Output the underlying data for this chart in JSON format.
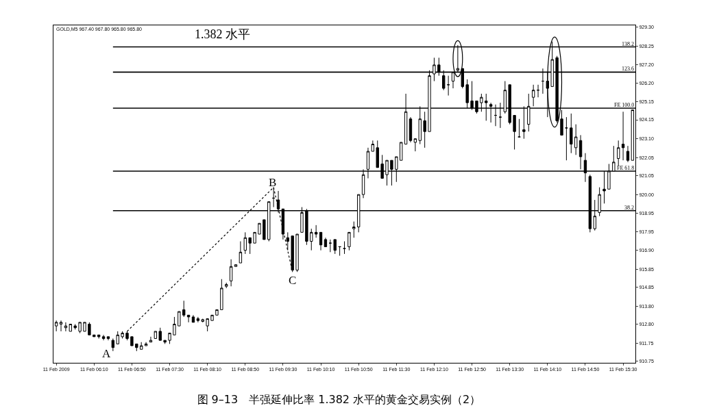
{
  "chart_data": {
    "type": "candlestick",
    "title": "图 9–13　半强延伸比率 1.382 水平的黄金交易实例（2）",
    "annotations": [
      "GOLD,M5 967.40 967.80 965.80 965.80",
      "1.382 水平",
      "A",
      "B",
      "C",
      "138.2",
      "123.6",
      "FE 100.0",
      "FE 61.8",
      "38.2"
    ],
    "x": [
      "2009-02-11T05:30",
      "2009-02-11T05:35",
      "2009-02-11T05:40",
      "2009-02-11T05:45",
      "2009-02-11T05:50",
      "2009-02-11T05:55",
      "2009-02-11T06:00",
      "2009-02-11T06:05",
      "2009-02-11T06:10",
      "2009-02-11T06:15",
      "2009-02-11T06:20",
      "2009-02-11T06:25",
      "2009-02-11T06:30",
      "2009-02-11T06:35",
      "2009-02-11T06:40",
      "2009-02-11T06:45",
      "2009-02-11T06:50",
      "2009-02-11T06:55",
      "2009-02-11T07:00",
      "2009-02-11T07:05",
      "2009-02-11T07:10",
      "2009-02-11T07:15",
      "2009-02-11T07:20",
      "2009-02-11T07:25",
      "2009-02-11T07:30",
      "2009-02-11T07:35",
      "2009-02-11T07:40",
      "2009-02-11T07:45",
      "2009-02-11T07:50",
      "2009-02-11T07:55",
      "2009-02-11T08:00",
      "2009-02-11T08:05",
      "2009-02-11T08:10",
      "2009-02-11T08:15",
      "2009-02-11T08:20",
      "2009-02-11T08:25",
      "2009-02-11T08:30",
      "2009-02-11T08:35",
      "2009-02-11T08:40",
      "2009-02-11T08:45",
      "2009-02-11T08:50",
      "2009-02-11T08:55",
      "2009-02-11T09:00",
      "2009-02-11T09:05",
      "2009-02-11T09:10",
      "2009-02-11T09:15",
      "2009-02-11T09:20",
      "2009-02-11T09:25",
      "2009-02-11T09:30",
      "2009-02-11T09:35",
      "2009-02-11T09:40",
      "2009-02-11T09:45",
      "2009-02-11T09:50",
      "2009-02-11T09:55",
      "2009-02-11T10:00",
      "2009-02-11T10:05",
      "2009-02-11T10:10",
      "2009-02-11T10:15",
      "2009-02-11T10:20",
      "2009-02-11T10:25",
      "2009-02-11T10:30",
      "2009-02-11T10:35",
      "2009-02-11T10:40",
      "2009-02-11T10:45",
      "2009-02-11T10:50",
      "2009-02-11T10:55",
      "2009-02-11T11:00",
      "2009-02-11T11:05",
      "2009-02-11T11:10",
      "2009-02-11T11:15",
      "2009-02-11T11:20",
      "2009-02-11T11:25",
      "2009-02-11T11:30",
      "2009-02-11T11:35",
      "2009-02-11T11:40",
      "2009-02-11T11:45",
      "2009-02-11T11:50",
      "2009-02-11T11:55",
      "2009-02-11T12:00",
      "2009-02-11T12:05",
      "2009-02-11T12:10",
      "2009-02-11T12:15",
      "2009-02-11T12:20",
      "2009-02-11T12:25",
      "2009-02-11T12:30",
      "2009-02-11T12:35",
      "2009-02-11T12:40",
      "2009-02-11T12:45",
      "2009-02-11T12:50",
      "2009-02-11T12:55",
      "2009-02-11T13:00",
      "2009-02-11T13:05",
      "2009-02-11T13:10",
      "2009-02-11T13:15",
      "2009-02-11T13:20",
      "2009-02-11T13:25",
      "2009-02-11T13:30",
      "2009-02-11T13:35",
      "2009-02-11T13:40",
      "2009-02-11T13:45",
      "2009-02-11T13:50",
      "2009-02-11T13:55",
      "2009-02-11T14:00",
      "2009-02-11T14:05",
      "2009-02-11T14:10",
      "2009-02-11T14:15",
      "2009-02-11T14:20",
      "2009-02-11T14:25",
      "2009-02-11T14:30",
      "2009-02-11T14:35",
      "2009-02-11T14:40",
      "2009-02-11T14:45",
      "2009-02-11T14:50",
      "2009-02-11T14:55",
      "2009-02-11T15:00",
      "2009-02-11T15:05",
      "2009-02-11T15:10",
      "2009-02-11T15:15",
      "2009-02-11T15:20",
      "2009-02-11T15:25",
      "2009-02-11T15:30",
      "2009-02-11T15:35",
      "2009-02-11T15:40"
    ],
    "ohlc": [
      [
        912.7,
        913.0,
        912.4,
        912.9
      ],
      [
        912.8,
        913.0,
        912.4,
        912.9
      ],
      [
        912.6,
        912.9,
        912.4,
        912.7
      ],
      [
        912.4,
        912.8,
        912.4,
        912.8
      ],
      [
        912.7,
        912.8,
        912.5,
        912.6
      ],
      [
        912.4,
        912.9,
        912.3,
        912.9
      ],
      [
        912.4,
        912.9,
        912.4,
        912.9
      ],
      [
        912.8,
        912.9,
        912.2,
        912.2
      ],
      [
        912.2,
        912.2,
        912.1,
        912.1
      ],
      [
        912.2,
        912.2,
        912.0,
        912.1
      ],
      [
        912.1,
        912.2,
        911.9,
        912.0
      ],
      [
        912.1,
        912.1,
        911.9,
        912.0
      ],
      [
        911.9,
        912.0,
        911.3,
        911.5
      ],
      [
        911.7,
        912.4,
        911.7,
        912.2
      ],
      [
        912.1,
        912.4,
        912.0,
        912.3
      ],
      [
        912.3,
        912.4,
        911.9,
        912.0
      ],
      [
        912.1,
        912.1,
        911.6,
        911.6
      ],
      [
        911.7,
        911.7,
        911.3,
        911.5
      ],
      [
        911.4,
        911.8,
        911.4,
        911.6
      ],
      [
        911.6,
        911.8,
        911.6,
        911.7
      ],
      [
        911.8,
        912.1,
        911.8,
        911.9
      ],
      [
        912.0,
        912.4,
        912.0,
        912.4
      ],
      [
        912.4,
        912.6,
        911.9,
        911.9
      ],
      [
        911.9,
        911.9,
        911.7,
        911.8
      ],
      [
        911.9,
        912.3,
        911.7,
        912.3
      ],
      [
        912.2,
        913.2,
        912.2,
        912.8
      ],
      [
        912.7,
        913.5,
        912.7,
        913.5
      ],
      [
        913.6,
        914.1,
        913.2,
        913.3
      ],
      [
        913.3,
        913.3,
        912.9,
        913.2
      ],
      [
        913.2,
        913.3,
        912.9,
        912.9
      ],
      [
        913.1,
        913.2,
        912.9,
        913.0
      ],
      [
        912.95,
        913.1,
        912.9,
        913.05
      ],
      [
        912.7,
        913.1,
        912.4,
        913.1
      ],
      [
        913.0,
        913.3,
        913.0,
        913.3
      ],
      [
        913.3,
        913.6,
        913.3,
        913.6
      ],
      [
        913.6,
        915.3,
        913.6,
        914.8
      ],
      [
        914.9,
        915.1,
        914.8,
        915.0
      ],
      [
        915.2,
        916.4,
        914.9,
        916.0
      ],
      [
        916.0,
        916.1,
        916.0,
        916.1
      ],
      [
        916.2,
        917.4,
        916.2,
        916.8
      ],
      [
        916.9,
        917.9,
        916.7,
        917.6
      ],
      [
        917.6,
        917.6,
        916.7,
        917.3
      ],
      [
        917.3,
        917.9,
        917.3,
        917.9
      ],
      [
        917.8,
        918.4,
        917.8,
        918.4
      ],
      [
        918.6,
        918.6,
        917.5,
        917.5
      ],
      [
        917.5,
        919.6,
        917.4,
        919.6
      ],
      [
        919.8,
        920.4,
        919.3,
        919.8
      ],
      [
        919.7,
        920.2,
        919.0,
        919.2
      ],
      [
        919.2,
        919.2,
        917.5,
        917.8
      ],
      [
        917.6,
        917.9,
        916.9,
        917.4
      ],
      [
        917.7,
        917.7,
        915.7,
        915.8
      ],
      [
        915.8,
        917.8,
        915.7,
        917.8
      ],
      [
        917.9,
        919.3,
        917.9,
        919.0
      ],
      [
        919.1,
        919.2,
        917.2,
        917.4
      ],
      [
        917.4,
        918.1,
        916.9,
        917.9
      ],
      [
        917.9,
        918.3,
        917.6,
        917.8
      ],
      [
        917.9,
        917.9,
        916.9,
        917.2
      ],
      [
        917.5,
        917.6,
        917.1,
        917.1
      ],
      [
        917.3,
        917.5,
        916.8,
        917.3
      ],
      [
        917.5,
        917.5,
        916.7,
        916.9
      ],
      [
        917.1,
        917.1,
        916.6,
        917.1
      ],
      [
        917.0,
        917.4,
        916.7,
        917.0
      ],
      [
        917.1,
        917.9,
        916.9,
        917.9
      ],
      [
        918.1,
        918.5,
        917.6,
        918.2
      ],
      [
        918.2,
        920.0,
        917.9,
        920.0
      ],
      [
        920.0,
        921.4,
        919.8,
        921.1
      ],
      [
        921.4,
        922.6,
        920.9,
        922.4
      ],
      [
        922.4,
        923.0,
        922.4,
        922.8
      ],
      [
        922.6,
        923.0,
        921.5,
        921.5
      ],
      [
        921.7,
        922.2,
        920.9,
        920.9
      ],
      [
        921.1,
        921.9,
        920.5,
        921.9
      ],
      [
        921.9,
        921.9,
        920.5,
        921.4
      ],
      [
        921.4,
        922.1,
        920.7,
        922.1
      ],
      [
        921.9,
        922.9,
        921.9,
        922.9
      ],
      [
        922.8,
        925.6,
        922.8,
        924.6
      ],
      [
        924.2,
        924.3,
        922.9,
        923.0
      ],
      [
        922.9,
        923.1,
        922.4,
        923.1
      ],
      [
        923.0,
        924.9,
        922.8,
        924.2
      ],
      [
        924.1,
        924.6,
        922.6,
        923.5
      ],
      [
        923.5,
        926.9,
        923.5,
        926.6
      ],
      [
        926.7,
        927.6,
        926.3,
        927.2
      ],
      [
        927.2,
        927.6,
        926.6,
        926.8
      ],
      [
        926.6,
        926.9,
        925.8,
        925.9
      ],
      [
        926.1,
        926.6,
        925.5,
        926.1
      ],
      [
        926.3,
        926.8,
        925.9,
        926.8
      ],
      [
        926.9,
        928.3,
        926.8,
        927.0
      ],
      [
        927.0,
        927.0,
        925.9,
        926.0
      ],
      [
        926.1,
        926.4,
        924.8,
        925.1
      ],
      [
        925.2,
        926.3,
        924.7,
        924.8
      ],
      [
        925.2,
        925.2,
        924.5,
        924.6
      ],
      [
        925.1,
        925.6,
        924.6,
        925.4
      ],
      [
        925.2,
        925.6,
        924.1,
        925.1
      ],
      [
        925.0,
        925.1,
        924.0,
        924.9
      ],
      [
        924.4,
        925.0,
        923.8,
        924.4
      ],
      [
        924.3,
        925.1,
        923.7,
        924.3
      ],
      [
        924.6,
        926.3,
        924.5,
        925.8
      ],
      [
        926.1,
        926.1,
        923.9,
        924.0
      ],
      [
        924.4,
        924.4,
        922.5,
        923.5
      ],
      [
        923.2,
        924.2,
        923.2,
        923.2
      ],
      [
        923.6,
        924.9,
        923.1,
        923.5
      ],
      [
        923.9,
        925.6,
        923.5,
        924.9
      ],
      [
        925.4,
        926.1,
        924.9,
        925.8
      ],
      [
        925.8,
        926.1,
        925.4,
        925.8
      ],
      [
        926.3,
        927.0,
        925.6,
        926.3
      ],
      [
        926.3,
        926.8,
        924.3,
        925.9
      ],
      [
        926.0,
        928.5,
        926.0,
        927.5
      ],
      [
        927.6,
        927.7,
        924.0,
        924.1
      ],
      [
        924.2,
        924.7,
        923.3,
        923.3
      ],
      [
        923.7,
        924.3,
        921.9,
        923.7
      ],
      [
        923.7,
        924.5,
        922.3,
        922.8
      ],
      [
        922.6,
        923.9,
        922.2,
        923.2
      ],
      [
        923.0,
        923.3,
        921.4,
        922.1
      ],
      [
        921.9,
        922.3,
        920.7,
        921.2
      ],
      [
        921.0,
        921.1,
        917.9,
        918.1
      ],
      [
        918.1,
        919.7,
        918.0,
        918.8
      ],
      [
        919.0,
        920.4,
        918.8,
        920.0
      ],
      [
        920.3,
        921.3,
        919.5,
        920.2
      ],
      [
        920.3,
        921.7,
        920.3,
        921.3
      ],
      [
        921.3,
        922.7,
        921.3,
        921.8
      ],
      [
        922.0,
        923.0,
        921.6,
        922.6
      ],
      [
        922.8,
        924.6,
        921.9,
        922.6
      ],
      [
        922.4,
        922.7,
        921.8,
        921.9
      ],
      [
        921.9,
        924.7,
        921.9,
        924.7
      ]
    ],
    "series": [
      {
        "type": "line",
        "x": [
          "2009-02-11T06:45",
          "2009-02-11T09:20",
          "2009-02-11T09:40"
        ],
        "values": [
          912.4,
          920.4,
          915.7
        ],
        "color": "#000000",
        "line_style": "dotted"
      }
    ],
    "ref_lines": [
      {
        "axis": "y",
        "value": 928.2,
        "color": "#000000"
      },
      {
        "axis": "y",
        "value": 926.8,
        "color": "#000000"
      },
      {
        "axis": "y",
        "value": 924.8,
        "color": "#000000"
      },
      {
        "axis": "y",
        "value": 921.3,
        "color": "#000000"
      },
      {
        "axis": "y",
        "value": 919.1,
        "color": "#000000"
      }
    ],
    "xlim": [
      "2009-02-11T05:27",
      "2009-02-11T15:43"
    ],
    "xticks": [
      {
        "value": "2009-02-11T05:30",
        "label": "11 Feb 2009"
      },
      {
        "value": "2009-02-11T06:10",
        "label": "11 Feb 06:10"
      },
      {
        "value": "2009-02-11T06:50",
        "label": "11 Feb 06:50"
      },
      {
        "value": "2009-02-11T07:30",
        "label": "11 Feb 07:30"
      },
      {
        "value": "2009-02-11T08:10",
        "label": "11 Feb 08:10"
      },
      {
        "value": "2009-02-11T08:50",
        "label": "11 Feb 08:50"
      },
      {
        "value": "2009-02-11T09:30",
        "label": "11 Feb 09:30"
      },
      {
        "value": "2009-02-11T10:10",
        "label": "11 Feb 10:10"
      },
      {
        "value": "2009-02-11T10:50",
        "label": "11 Feb 10:50"
      },
      {
        "value": "2009-02-11T11:30",
        "label": "11 Feb 11:30"
      },
      {
        "value": "2009-02-11T12:10",
        "label": "11 Feb 12:10"
      },
      {
        "value": "2009-02-11T12:50",
        "label": "11 Feb 12:50"
      },
      {
        "value": "2009-02-11T13:30",
        "label": "11 Feb 13:30"
      },
      {
        "value": "2009-02-11T14:10",
        "label": "11 Feb 14:10"
      },
      {
        "value": "2009-02-11T14:50",
        "label": "11 Feb 14:50"
      },
      {
        "value": "2009-02-11T15:30",
        "label": "11 Feb 15:30"
      }
    ],
    "ylim": [
      910.65,
      929.4
    ],
    "yticks": [
      {
        "value": 929.3,
        "label": "929.30"
      },
      928.25,
      {
        "value": 927.2,
        "label": "927.20"
      },
      {
        "value": 926.2,
        "label": "926.20"
      },
      925.15,
      924.15,
      {
        "value": 923.1,
        "label": "923.10"
      },
      922.05,
      921.05,
      {
        "value": 920,
        "label": "920.00"
      },
      918.95,
      917.95,
      {
        "value": 916.9,
        "label": "916.90"
      },
      915.85,
      914.85,
      {
        "value": 913.8,
        "label": "913.80"
      },
      {
        "value": 912.8,
        "label": "912.80"
      },
      911.75,
      910.75
    ]
  }
}
